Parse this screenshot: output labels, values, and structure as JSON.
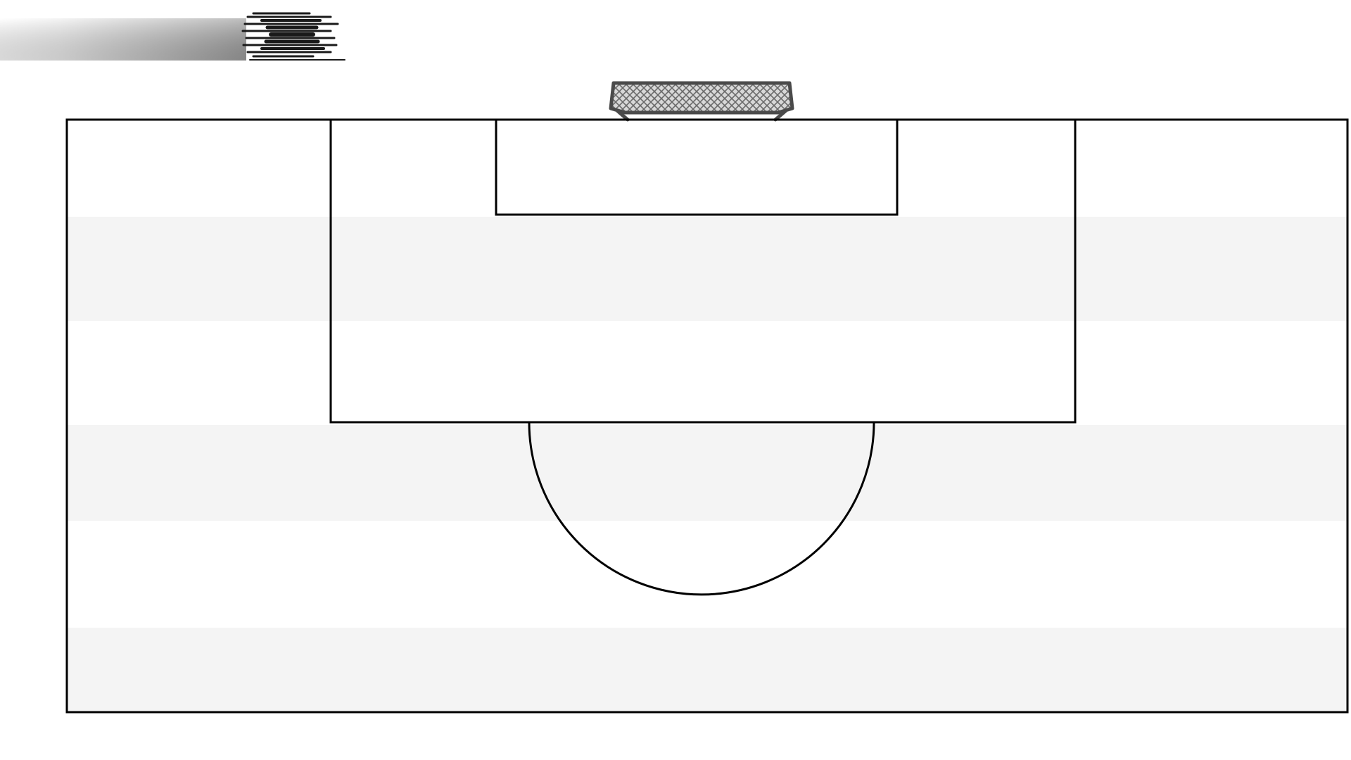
{
  "colors": {
    "background": "#ffffff",
    "line": "#000000",
    "stripe_light": "#ffffff",
    "stripe_shaded": "#f4f4f4",
    "goal_frame": "#4a4a4a",
    "goal_net": "#9a9a9a",
    "logo_bar_dark": "#a0a0a0",
    "logo_mark": "#1a1a1a"
  },
  "icons": {
    "logo": "speed-lines-logo-icon",
    "goal": "soccer-goal-icon"
  }
}
